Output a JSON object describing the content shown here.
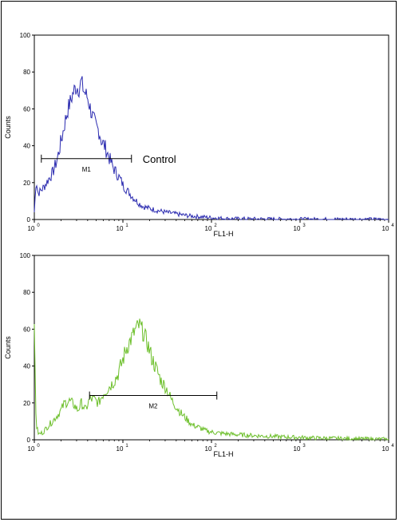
{
  "chart_data": [
    {
      "type": "line",
      "xlabel": "FL1-H",
      "ylabel": "Counts",
      "xscale": "log",
      "xlim": [
        1,
        10000
      ],
      "ylim": [
        0,
        100
      ],
      "x_ticks": [
        {
          "base": "10",
          "exp": "0"
        },
        {
          "base": "10",
          "exp": "1"
        },
        {
          "base": "10",
          "exp": "2"
        },
        {
          "base": "10",
          "exp": "3"
        },
        {
          "base": "10",
          "exp": "4"
        }
      ],
      "y_ticks": [
        "0",
        "20",
        "40",
        "60",
        "80",
        "100"
      ],
      "color": "#2b2bb0",
      "gate": {
        "label": "M1",
        "x1": 1.2,
        "x2": 12.5,
        "y": 33
      },
      "annotation": "Control",
      "series": [
        {
          "x": [
            1.0,
            1.05,
            1.1,
            1.2,
            1.3,
            1.45,
            1.6,
            1.8,
            2.0,
            2.2,
            2.4,
            2.6,
            2.8,
            3.0,
            3.2,
            3.4,
            3.6,
            3.8,
            4.0,
            4.3,
            4.6,
            5.0,
            5.4,
            5.8,
            6.2,
            6.7,
            7.2,
            7.8,
            8.5,
            9.3,
            10.2,
            11.5,
            13,
            15,
            17,
            20,
            24,
            30,
            40,
            55,
            75,
            100,
            150,
            300,
            1000,
            10000
          ],
          "y": [
            4,
            22,
            14,
            16,
            18,
            22,
            25,
            32,
            42,
            52,
            60,
            65,
            70,
            72,
            71,
            75,
            70,
            68,
            66,
            60,
            55,
            50,
            48,
            42,
            40,
            36,
            32,
            28,
            25,
            22,
            18,
            15,
            12,
            9,
            7,
            6,
            5,
            4,
            3,
            2,
            1.5,
            1,
            0.5,
            0.3,
            0.2,
            0.1
          ]
        }
      ]
    },
    {
      "type": "line",
      "xlabel": "FL1-H",
      "ylabel": "Counts",
      "xscale": "log",
      "xlim": [
        1,
        10000
      ],
      "ylim": [
        0,
        100
      ],
      "x_ticks": [
        {
          "base": "10",
          "exp": "0"
        },
        {
          "base": "10",
          "exp": "1"
        },
        {
          "base": "10",
          "exp": "2"
        },
        {
          "base": "10",
          "exp": "3"
        },
        {
          "base": "10",
          "exp": "4"
        }
      ],
      "y_ticks": [
        "0",
        "20",
        "40",
        "60",
        "80",
        "100"
      ],
      "color": "#6cbf2a",
      "gate": {
        "label": "M2",
        "x1": 4.2,
        "x2": 115,
        "y": 24
      },
      "series": [
        {
          "x": [
            1.0,
            1.05,
            1.12,
            1.25,
            1.4,
            1.6,
            1.8,
            2.0,
            2.2,
            2.5,
            2.8,
            3.1,
            3.4,
            3.8,
            4.2,
            4.7,
            5.3,
            6.0,
            6.8,
            7.7,
            8.7,
            9.8,
            11,
            12.5,
            14,
            15.5,
            17,
            19,
            21,
            24,
            27,
            31,
            35,
            40,
            46,
            53,
            61,
            70,
            85,
            105,
            130,
            170,
            250,
            400,
            700,
            1500,
            4000,
            10000
          ],
          "y": [
            58,
            8,
            3,
            4,
            7,
            10,
            13,
            16,
            20,
            21,
            19,
            16,
            20,
            16,
            22,
            22,
            20,
            25,
            28,
            31,
            35,
            42,
            50,
            55,
            60,
            62,
            58,
            52,
            45,
            38,
            32,
            28,
            22,
            18,
            14,
            11,
            8,
            7,
            5,
            4,
            3.5,
            3,
            2.5,
            2,
            1.5,
            1,
            0.6,
            0.3
          ]
        }
      ]
    }
  ]
}
